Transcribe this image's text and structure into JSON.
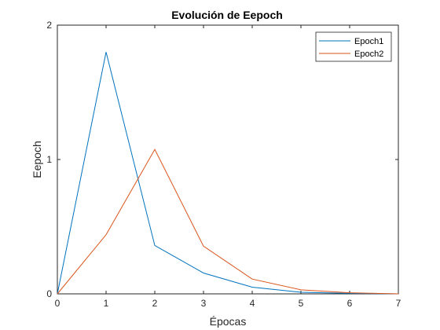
{
  "chart_data": {
    "type": "line",
    "title": "Evolución de Eepoch",
    "xlabel": "Épocas",
    "ylabel": "Eepoch",
    "xlim": [
      0,
      7
    ],
    "ylim": [
      0,
      2
    ],
    "xticks": [
      "0",
      "1",
      "2",
      "3",
      "4",
      "5",
      "6",
      "7"
    ],
    "yticks": [
      "0",
      "1",
      "2"
    ],
    "grid": false,
    "legend_position": "top-right",
    "x": [
      0,
      1,
      2,
      3,
      4,
      5,
      6,
      7
    ],
    "series": [
      {
        "name": "Epoch1",
        "color": "#0072BD",
        "values": [
          0,
          1.8,
          0.36,
          0.155,
          0.05,
          0.012,
          0.004,
          0
        ]
      },
      {
        "name": "Epoch2",
        "color": "#D95319",
        "values": [
          0,
          0.44,
          1.075,
          0.355,
          0.11,
          0.03,
          0.008,
          0
        ]
      }
    ]
  }
}
